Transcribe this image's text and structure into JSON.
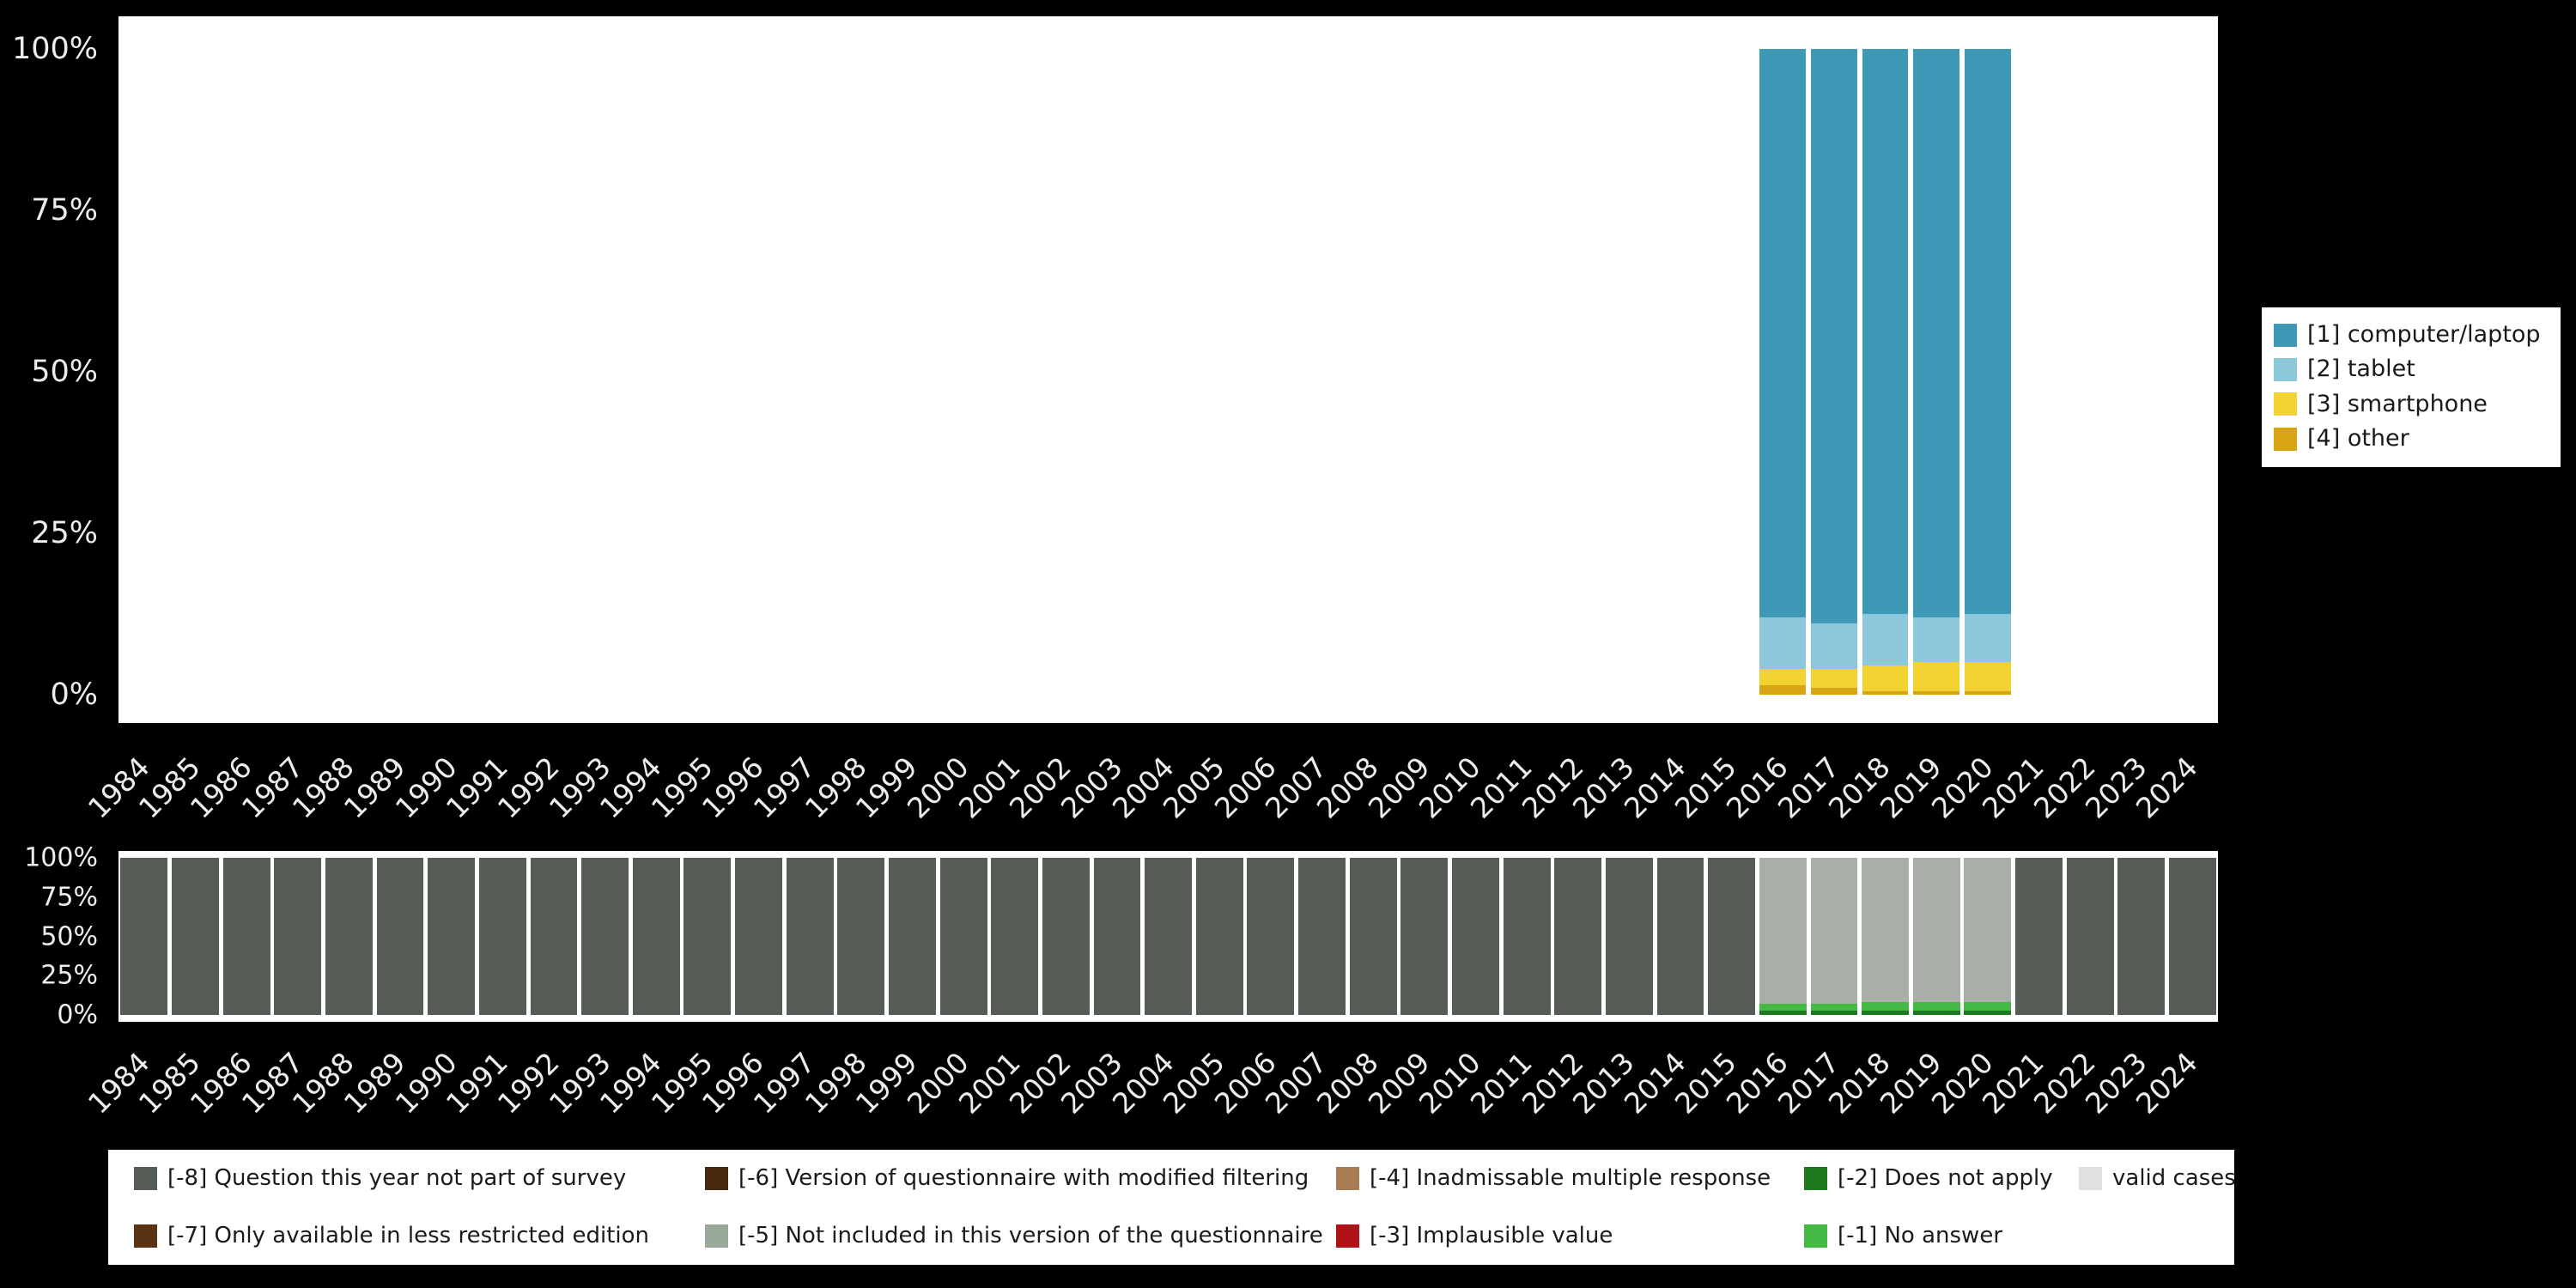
{
  "background": "#000000",
  "chart_data": [
    {
      "id": "top",
      "type": "bar",
      "stacked": true,
      "title": "",
      "xlabel": "",
      "ylabel": "",
      "ylim": [
        0,
        100
      ],
      "grid": false,
      "legend_position": "right",
      "yticks": [
        "100%",
        "75%",
        "50%",
        "25%",
        "0%"
      ],
      "categories": [
        "1984",
        "1985",
        "1986",
        "1987",
        "1988",
        "1989",
        "1990",
        "1991",
        "1992",
        "1993",
        "1994",
        "1995",
        "1996",
        "1997",
        "1998",
        "1999",
        "2000",
        "2001",
        "2002",
        "2003",
        "2004",
        "2005",
        "2006",
        "2007",
        "2008",
        "2009",
        "2010",
        "2011",
        "2012",
        "2013",
        "2014",
        "2015",
        "2016",
        "2017",
        "2018",
        "2019",
        "2020",
        "2021",
        "2022",
        "2023",
        "2024"
      ],
      "series": [
        {
          "name": "[1] computer/laptop",
          "color": "#3D99B5",
          "values": [
            0,
            0,
            0,
            0,
            0,
            0,
            0,
            0,
            0,
            0,
            0,
            0,
            0,
            0,
            0,
            0,
            0,
            0,
            0,
            0,
            0,
            0,
            0,
            0,
            0,
            0,
            0,
            0,
            0,
            0,
            0,
            0,
            88,
            89,
            87.5,
            88,
            87.5,
            0,
            0,
            0,
            0
          ]
        },
        {
          "name": "[2] tablet",
          "color": "#8DC7DB",
          "values": [
            0,
            0,
            0,
            0,
            0,
            0,
            0,
            0,
            0,
            0,
            0,
            0,
            0,
            0,
            0,
            0,
            0,
            0,
            0,
            0,
            0,
            0,
            0,
            0,
            0,
            0,
            0,
            0,
            0,
            0,
            0,
            0,
            8,
            7,
            8,
            7,
            7.5,
            0,
            0,
            0,
            0
          ]
        },
        {
          "name": "[3] smartphone",
          "color": "#F2D230",
          "values": [
            0,
            0,
            0,
            0,
            0,
            0,
            0,
            0,
            0,
            0,
            0,
            0,
            0,
            0,
            0,
            0,
            0,
            0,
            0,
            0,
            0,
            0,
            0,
            0,
            0,
            0,
            0,
            0,
            0,
            0,
            0,
            0,
            2.5,
            3,
            4,
            4.5,
            4.5,
            0,
            0,
            0,
            0
          ]
        },
        {
          "name": "[4] other",
          "color": "#D7A514",
          "values": [
            0,
            0,
            0,
            0,
            0,
            0,
            0,
            0,
            0,
            0,
            0,
            0,
            0,
            0,
            0,
            0,
            0,
            0,
            0,
            0,
            0,
            0,
            0,
            0,
            0,
            0,
            0,
            0,
            0,
            0,
            0,
            0,
            1.5,
            1,
            0.5,
            0.5,
            0.5,
            0,
            0,
            0,
            0
          ]
        }
      ]
    },
    {
      "id": "bottom",
      "type": "bar",
      "stacked": true,
      "title": "",
      "xlabel": "",
      "ylabel": "",
      "ylim": [
        0,
        100
      ],
      "grid": false,
      "legend_position": "bottom",
      "yticks": [
        "100%",
        "75%",
        "50%",
        "25%",
        "0%"
      ],
      "categories": [
        "1984",
        "1985",
        "1986",
        "1987",
        "1988",
        "1989",
        "1990",
        "1991",
        "1992",
        "1993",
        "1994",
        "1995",
        "1996",
        "1997",
        "1998",
        "1999",
        "2000",
        "2001",
        "2002",
        "2003",
        "2004",
        "2005",
        "2006",
        "2007",
        "2008",
        "2009",
        "2010",
        "2011",
        "2012",
        "2013",
        "2014",
        "2015",
        "2016",
        "2017",
        "2018",
        "2019",
        "2020",
        "2021",
        "2022",
        "2023",
        "2024"
      ],
      "series": [
        {
          "name": "valid cases",
          "color": "#A9AEA7",
          "values": [
            0,
            0,
            0,
            0,
            0,
            0,
            0,
            0,
            0,
            0,
            0,
            0,
            0,
            0,
            0,
            0,
            0,
            0,
            0,
            0,
            0,
            0,
            0,
            0,
            0,
            0,
            0,
            0,
            0,
            0,
            0,
            0,
            93,
            93,
            92,
            92,
            92,
            0,
            0,
            0,
            0
          ]
        },
        {
          "name": "[-1] No answer",
          "color": "#44B944",
          "values": [
            0,
            0,
            0,
            0,
            0,
            0,
            0,
            0,
            0,
            0,
            0,
            0,
            0,
            0,
            0,
            0,
            0,
            0,
            0,
            0,
            0,
            0,
            0,
            0,
            0,
            0,
            0,
            0,
            0,
            0,
            0,
            0,
            4,
            4,
            5,
            5,
            5,
            0,
            0,
            0,
            0
          ]
        },
        {
          "name": "[-2] Does not apply",
          "color": "#1E7A1E",
          "values": [
            0,
            0,
            0,
            0,
            0,
            0,
            0,
            0,
            0,
            0,
            0,
            0,
            0,
            0,
            0,
            0,
            0,
            0,
            0,
            0,
            0,
            0,
            0,
            0,
            0,
            0,
            0,
            0,
            0,
            0,
            0,
            0,
            3,
            3,
            3,
            3,
            3,
            0,
            0,
            0,
            0
          ]
        },
        {
          "name": "[-8] Question this year not part of survey",
          "color": "#565D56",
          "values": [
            100,
            100,
            100,
            100,
            100,
            100,
            100,
            100,
            100,
            100,
            100,
            100,
            100,
            100,
            100,
            100,
            100,
            100,
            100,
            100,
            100,
            100,
            100,
            100,
            100,
            100,
            100,
            100,
            100,
            100,
            100,
            100,
            0,
            0,
            0,
            0,
            0,
            100,
            100,
            100,
            100
          ]
        }
      ]
    }
  ],
  "legend_top": {
    "items": [
      {
        "label": "[1] computer/laptop",
        "color": "#3D99B5"
      },
      {
        "label": "[2] tablet",
        "color": "#8DC7DB"
      },
      {
        "label": "[3] smartphone",
        "color": "#F2D230"
      },
      {
        "label": "[4] other",
        "color": "#D7A514"
      }
    ]
  },
  "legend_bottom": {
    "items": [
      {
        "label": "[-8] Question this year not part of survey",
        "color": "#565D56",
        "row": 1,
        "col": 1
      },
      {
        "label": "[-7] Only available in less restricted edition",
        "color": "#5A3315",
        "row": 2,
        "col": 1
      },
      {
        "label": "[-6] Version of questionnaire with modified filtering",
        "color": "#46290F",
        "row": 1,
        "col": 2
      },
      {
        "label": "[-5] Not included in this version of the questionnaire",
        "color": "#9AA89A",
        "row": 2,
        "col": 2
      },
      {
        "label": "[-4] Inadmissable multiple response",
        "color": "#A87C52",
        "row": 1,
        "col": 3
      },
      {
        "label": "[-3] Implausible value",
        "color": "#B01217",
        "row": 2,
        "col": 3
      },
      {
        "label": "[-2] Does not apply",
        "color": "#1E7A1E",
        "row": 1,
        "col": 4
      },
      {
        "label": "[-1] No answer",
        "color": "#44B944",
        "row": 2,
        "col": 4
      },
      {
        "label": "valid cases",
        "color": "#E0E0E0",
        "row": 1,
        "col": 5
      }
    ]
  }
}
